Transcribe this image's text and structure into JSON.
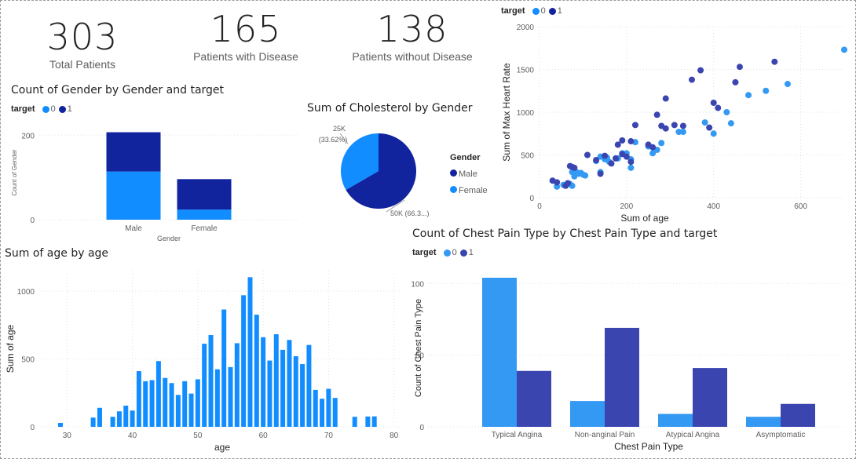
{
  "kpis": [
    {
      "value": "303",
      "label": "Total Patients"
    },
    {
      "value": "165",
      "label": "Patients with Disease"
    },
    {
      "value": "138",
      "label": "Patients without Disease"
    }
  ],
  "colors": {
    "target0": "#118dff",
    "target1": "#12239e",
    "light": "#3399f3",
    "dark": "#3a45b0",
    "grid": "#e1e1e1",
    "axis": "#605e5c"
  },
  "chart_data": [
    {
      "id": "gender",
      "type": "bar",
      "title": "Count of Gender by Gender and target",
      "legend_title": "target",
      "xlabel": "Gender",
      "ylabel": "Count of Gender",
      "categories": [
        "Male",
        "Female"
      ],
      "series": [
        {
          "name": "0",
          "values": [
            114,
            24
          ]
        },
        {
          "name": "1",
          "values": [
            93,
            72
          ]
        }
      ],
      "yticks": [
        0,
        200
      ],
      "ylim": [
        0,
        260
      ],
      "stacked": true
    },
    {
      "id": "cholesterol",
      "type": "pie",
      "title": "Sum of Cholesterol by Gender",
      "legend_title": "Gender",
      "slices": [
        {
          "name": "Male",
          "value": 50,
          "label": "50K (66.3...)"
        },
        {
          "name": "Female",
          "value": 25,
          "label": "25K",
          "pct": "(33.62%)"
        }
      ]
    },
    {
      "id": "scatter",
      "type": "scatter",
      "legend_title": "target",
      "xlabel": "Sum of age",
      "ylabel": "Sum of Max Heart Rate",
      "xticks": [
        0,
        200,
        400,
        600
      ],
      "yticks": [
        0,
        500,
        1000,
        1500,
        2000
      ],
      "xlim": [
        0,
        700
      ],
      "ylim": [
        0,
        2000
      ],
      "series": [
        {
          "name": "0",
          "points": [
            [
              40,
              130
            ],
            [
              55,
              150
            ],
            [
              70,
              160
            ],
            [
              75,
              140
            ],
            [
              80,
              250
            ],
            [
              85,
              300
            ],
            [
              90,
              280
            ],
            [
              95,
              290
            ],
            [
              100,
              270
            ],
            [
              105,
              260
            ],
            [
              75,
              300
            ],
            [
              130,
              430
            ],
            [
              140,
              480
            ],
            [
              150,
              450
            ],
            [
              155,
              470
            ],
            [
              140,
              300
            ],
            [
              160,
              420
            ],
            [
              180,
              460
            ],
            [
              190,
              520
            ],
            [
              200,
              520
            ],
            [
              210,
              450
            ],
            [
              210,
              350
            ],
            [
              220,
              650
            ],
            [
              250,
              600
            ],
            [
              260,
              520
            ],
            [
              270,
              560
            ],
            [
              280,
              640
            ],
            [
              320,
              770
            ],
            [
              330,
              770
            ],
            [
              380,
              880
            ],
            [
              400,
              750
            ],
            [
              430,
              1000
            ],
            [
              440,
              870
            ],
            [
              480,
              1200
            ],
            [
              520,
              1250
            ],
            [
              570,
              1330
            ],
            [
              700,
              1730
            ]
          ]
        },
        {
          "name": "1",
          "points": [
            [
              30,
              200
            ],
            [
              40,
              180
            ],
            [
              60,
              140
            ],
            [
              65,
              170
            ],
            [
              70,
              370
            ],
            [
              75,
              360
            ],
            [
              80,
              350
            ],
            [
              110,
              500
            ],
            [
              130,
              440
            ],
            [
              140,
              280
            ],
            [
              150,
              490
            ],
            [
              165,
              400
            ],
            [
              175,
              460
            ],
            [
              180,
              620
            ],
            [
              190,
              510
            ],
            [
              190,
              670
            ],
            [
              200,
              480
            ],
            [
              210,
              660
            ],
            [
              210,
              420
            ],
            [
              220,
              850
            ],
            [
              250,
              620
            ],
            [
              260,
              590
            ],
            [
              270,
              970
            ],
            [
              280,
              840
            ],
            [
              290,
              1160
            ],
            [
              290,
              810
            ],
            [
              310,
              850
            ],
            [
              330,
              840
            ],
            [
              350,
              1380
            ],
            [
              370,
              1490
            ],
            [
              390,
              820
            ],
            [
              400,
              1110
            ],
            [
              410,
              1050
            ],
            [
              450,
              1350
            ],
            [
              460,
              1530
            ],
            [
              540,
              1590
            ]
          ]
        }
      ]
    },
    {
      "id": "age",
      "type": "bar",
      "title": "Sum of age by age",
      "xlabel": "age",
      "ylabel": "Sum of age",
      "xticks": [
        30,
        40,
        50,
        60,
        70,
        80
      ],
      "yticks": [
        0,
        500,
        1000
      ],
      "xlim": [
        26,
        81
      ],
      "ylim": [
        0,
        1150
      ],
      "bars": [
        [
          29,
          29
        ],
        [
          34,
          68
        ],
        [
          35,
          140
        ],
        [
          37,
          74
        ],
        [
          38,
          114
        ],
        [
          39,
          156
        ],
        [
          40,
          120
        ],
        [
          41,
          410
        ],
        [
          42,
          336
        ],
        [
          43,
          344
        ],
        [
          44,
          484
        ],
        [
          45,
          360
        ],
        [
          46,
          322
        ],
        [
          47,
          235
        ],
        [
          48,
          336
        ],
        [
          49,
          245
        ],
        [
          50,
          350
        ],
        [
          51,
          612
        ],
        [
          52,
          676
        ],
        [
          53,
          424
        ],
        [
          54,
          864
        ],
        [
          55,
          440
        ],
        [
          56,
          616
        ],
        [
          57,
          969
        ],
        [
          58,
          1102
        ],
        [
          59,
          826
        ],
        [
          60,
          660
        ],
        [
          61,
          488
        ],
        [
          62,
          682
        ],
        [
          63,
          567
        ],
        [
          64,
          640
        ],
        [
          65,
          520
        ],
        [
          66,
          462
        ],
        [
          67,
          603
        ],
        [
          68,
          272
        ],
        [
          69,
          207
        ],
        [
          70,
          280
        ],
        [
          71,
          213
        ],
        [
          74,
          74
        ],
        [
          76,
          76
        ],
        [
          77,
          77
        ]
      ]
    },
    {
      "id": "chestpain",
      "type": "bar",
      "title": "Count of Chest Pain Type by Chest Pain Type and target",
      "legend_title": "target",
      "xlabel": "Chest Pain Type",
      "ylabel": "Count of Chest Pain Type",
      "categories": [
        "Typical Angina",
        "Non-anginal Pain",
        "Atypical Angina",
        "Asymptomatic"
      ],
      "series": [
        {
          "name": "0",
          "values": [
            104,
            18,
            9,
            7
          ]
        },
        {
          "name": "1",
          "values": [
            39,
            69,
            41,
            16
          ]
        }
      ],
      "yticks": [
        0,
        50,
        100
      ],
      "ylim": [
        0,
        110
      ]
    }
  ]
}
